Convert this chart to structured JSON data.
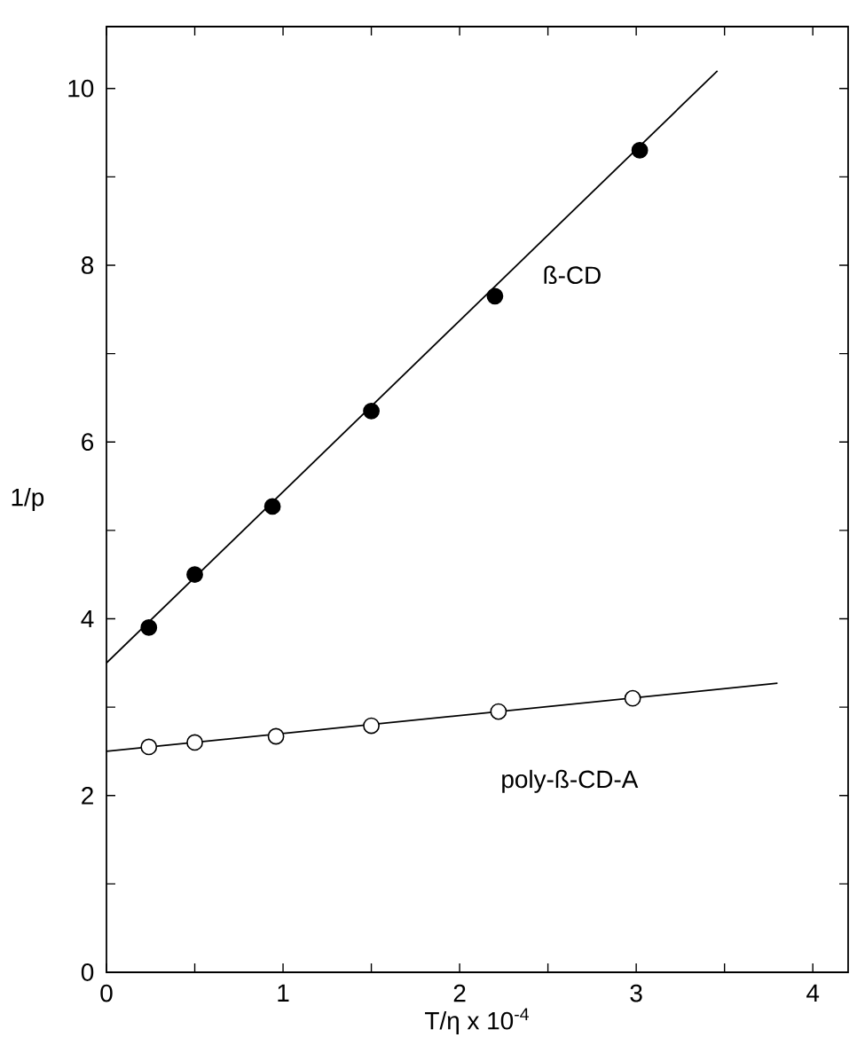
{
  "chart_data": {
    "type": "scatter",
    "xlabel": "T/η  x 10$^{-4}$",
    "ylabel": "1/p",
    "xlim": [
      0,
      4.2
    ],
    "ylim": [
      0,
      10.7
    ],
    "xticks": [
      0,
      {
        "value": 0.5,
        "label": null
      },
      1,
      {
        "value": 1.5,
        "label": null
      },
      2,
      {
        "value": 2.5,
        "label": null
      },
      3,
      {
        "value": 3.5,
        "label": null
      },
      4
    ],
    "yticks": [
      0,
      {
        "value": 1,
        "label": null
      },
      2,
      {
        "value": 3,
        "label": null
      },
      4,
      {
        "value": 5,
        "label": null
      },
      6,
      {
        "value": 7,
        "label": null
      },
      8,
      {
        "value": 9,
        "label": null
      },
      10
    ],
    "marker": "circle",
    "grid": false,
    "series": [
      {
        "name": "ß-CD",
        "color": "#000000",
        "x": [
          0.24,
          0.5,
          0.94,
          1.5,
          2.2,
          3.02
        ],
        "values": [
          3.9,
          4.5,
          5.27,
          6.35,
          7.65,
          9.3
        ]
      },
      {
        "name": "poly-ß-CD-A",
        "color": "#ffffff",
        "x": [
          0.24,
          0.5,
          0.96,
          1.5,
          2.22,
          2.98
        ],
        "values": [
          2.55,
          2.6,
          2.67,
          2.79,
          2.95,
          3.1
        ]
      },
      {
        "type": "line",
        "marker": "none",
        "color": "#000000",
        "x": [
          0,
          3.46
        ],
        "values": [
          3.5,
          10.2
        ]
      },
      {
        "type": "line",
        "marker": "none",
        "color": "#000000",
        "x": [
          0,
          3.8
        ],
        "values": [
          2.5,
          3.27
        ]
      }
    ]
  }
}
